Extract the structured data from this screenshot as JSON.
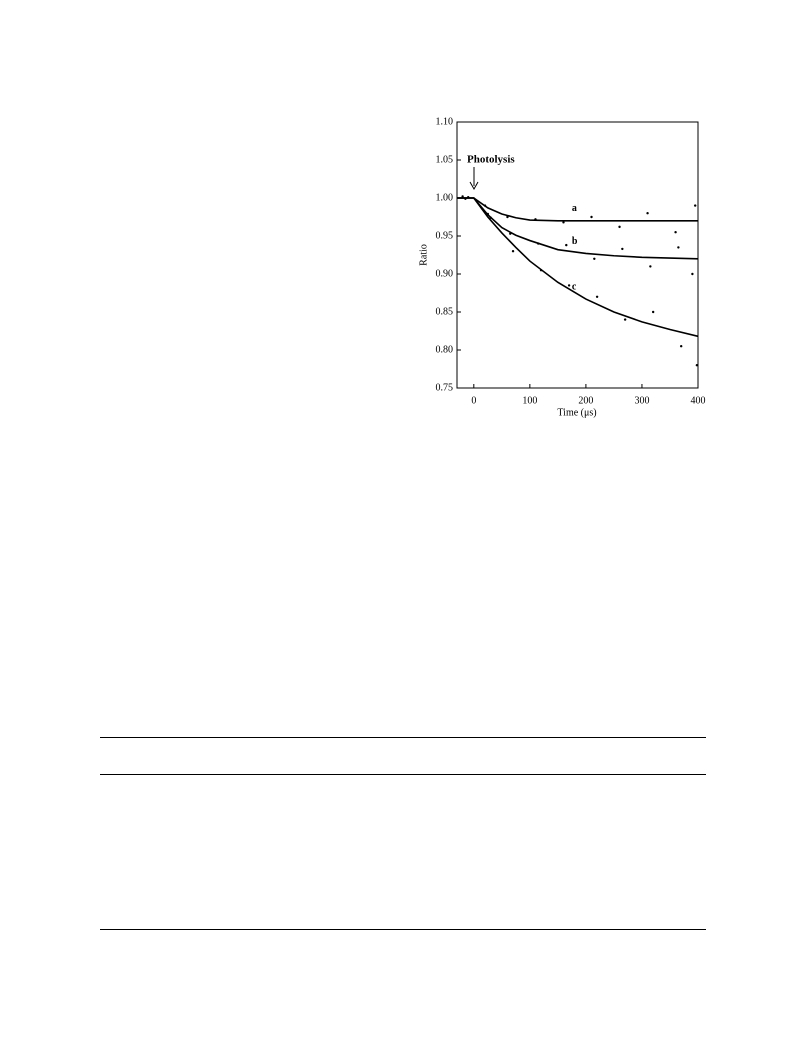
{
  "chart_data": {
    "type": "line",
    "y_label": "Ratio",
    "x_label": "Time (μs)",
    "annotation": "Photolysis",
    "xlim": [
      -30,
      400
    ],
    "xticks": [
      0,
      100,
      200,
      300,
      400
    ],
    "ylim": [
      0.75,
      1.1
    ],
    "yticks": [
      {
        "value": 0.75,
        "label": "0.75"
      },
      {
        "value": 0.8,
        "label": "0.80"
      },
      {
        "value": 0.85,
        "label": "0.85"
      },
      {
        "value": 0.9,
        "label": "0.90"
      },
      {
        "value": 0.95,
        "label": "0.95"
      },
      {
        "value": 1.0,
        "label": "1.00"
      },
      {
        "value": 1.05,
        "label": "1.05"
      },
      {
        "value": 1.1,
        "label": "1.10"
      }
    ],
    "grid": false,
    "series": [
      {
        "name": "a",
        "type": "line",
        "color": "#000000",
        "x": [
          -30,
          0,
          25,
          50,
          75,
          100,
          150,
          200,
          250,
          300,
          350,
          400
        ],
        "values": [
          1.0,
          1.0,
          0.987,
          0.979,
          0.974,
          0.971,
          0.97,
          0.97,
          0.97,
          0.97,
          0.97,
          0.97
        ]
      },
      {
        "name": "b",
        "type": "line",
        "color": "#000000",
        "x": [
          -30,
          0,
          25,
          50,
          75,
          100,
          150,
          200,
          250,
          300,
          350,
          400
        ],
        "values": [
          1.0,
          1.0,
          0.978,
          0.961,
          0.951,
          0.944,
          0.932,
          0.927,
          0.924,
          0.922,
          0.921,
          0.92
        ]
      },
      {
        "name": "c",
        "type": "line",
        "color": "#000000",
        "x": [
          -30,
          0,
          25,
          50,
          75,
          100,
          150,
          200,
          250,
          300,
          350,
          400
        ],
        "values": [
          1.0,
          1.0,
          0.975,
          0.954,
          0.935,
          0.917,
          0.889,
          0.867,
          0.85,
          0.837,
          0.827,
          0.818
        ]
      },
      {
        "type": "scatter",
        "color": "#000000",
        "x": [
          -20,
          20,
          60,
          110,
          160,
          210,
          260,
          310,
          360,
          395
        ],
        "values": [
          1.002,
          0.99,
          0.975,
          0.972,
          0.968,
          0.975,
          0.962,
          0.98,
          0.955,
          0.99
        ]
      },
      {
        "type": "scatter",
        "color": "#000000",
        "x": [
          -15,
          25,
          65,
          115,
          165,
          215,
          265,
          315,
          365,
          390
        ],
        "values": [
          0.999,
          0.979,
          0.953,
          0.94,
          0.938,
          0.92,
          0.933,
          0.91,
          0.935,
          0.9
        ]
      },
      {
        "type": "scatter",
        "color": "#000000",
        "x": [
          -10,
          30,
          70,
          120,
          170,
          220,
          270,
          320,
          370,
          398
        ],
        "values": [
          1.001,
          0.974,
          0.93,
          0.905,
          0.885,
          0.87,
          0.84,
          0.85,
          0.805,
          0.78
        ]
      }
    ]
  }
}
